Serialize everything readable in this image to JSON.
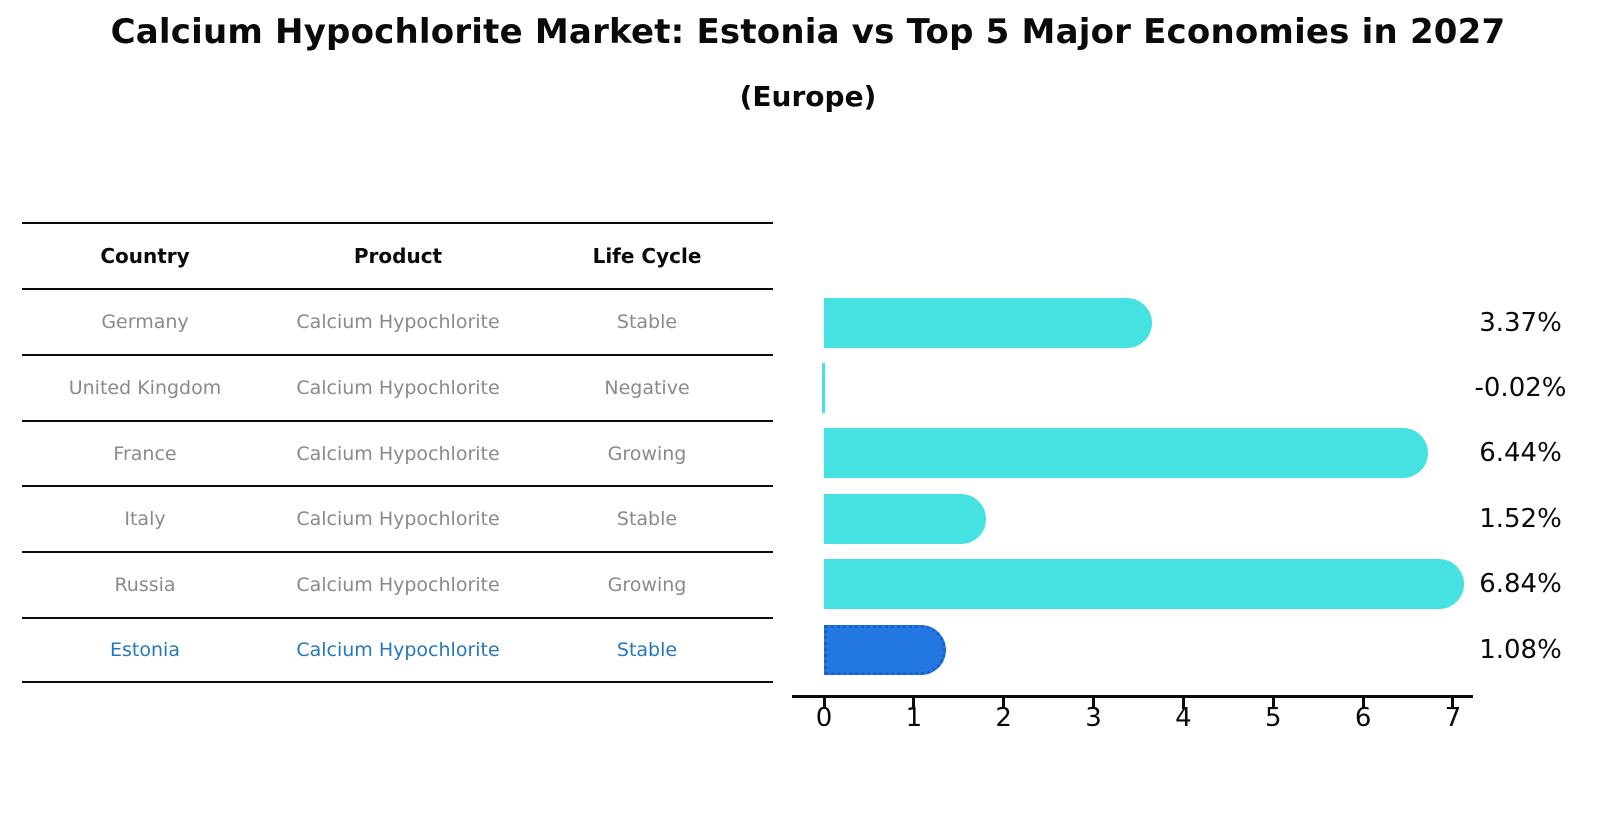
{
  "title": "Calcium Hypochlorite Market: Estonia vs Top 5 Major Economies in 2027",
  "subtitle": "(Europe)",
  "colors": {
    "bar": "#46e2e2",
    "highlight_bar": "#2278e0",
    "highlight_bar_border": "#1a5fc8",
    "highlight_text": "#2678be",
    "table_text": "#8a8a8a",
    "heading_text": "#0a0a0a"
  },
  "table": {
    "columns": [
      "Country",
      "Product",
      "Life Cycle"
    ],
    "rows": [
      {
        "country": "Germany",
        "product": "Calcium Hypochlorite",
        "life_cycle": "Stable",
        "highlight": false
      },
      {
        "country": "United Kingdom",
        "product": "Calcium Hypochlorite",
        "life_cycle": "Negative",
        "highlight": false
      },
      {
        "country": "France",
        "product": "Calcium Hypochlorite",
        "life_cycle": "Growing",
        "highlight": false
      },
      {
        "country": "Italy",
        "product": "Calcium Hypochlorite",
        "life_cycle": "Stable",
        "highlight": false
      },
      {
        "country": "Russia",
        "product": "Calcium Hypochlorite",
        "life_cycle": "Growing",
        "highlight": false
      },
      {
        "country": "Estonia",
        "product": "Calcium Hypochlorite",
        "life_cycle": "Stable",
        "highlight": true
      }
    ]
  },
  "chart_data": {
    "type": "bar",
    "orientation": "horizontal",
    "title": "Calcium Hypochlorite Market: Estonia vs Top 5 Major Economies in 2027",
    "subtitle": "(Europe)",
    "categories": [
      "Germany",
      "United Kingdom",
      "France",
      "Italy",
      "Russia",
      "Estonia"
    ],
    "values": [
      3.37,
      -0.02,
      6.44,
      1.52,
      6.84,
      1.08
    ],
    "value_labels": [
      "3.37%",
      "-0.02%",
      "6.44%",
      "1.52%",
      "6.84%",
      "1.08%"
    ],
    "value_suffix": "%",
    "xlim": [
      0,
      7
    ],
    "x_ticks": [
      0,
      1,
      2,
      3,
      4,
      5,
      6,
      7
    ],
    "grid": false,
    "legend": "none",
    "highlight_category": "Estonia"
  }
}
